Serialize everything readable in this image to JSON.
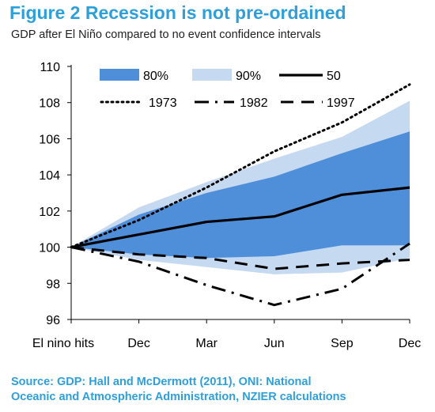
{
  "figure": {
    "title": "Figure 2 Recession is not pre-ordained",
    "subtitle": "GDP after El Niño compared to no event confidence intervals",
    "source_line1": "Source: GDP: Hall and McDermott (2011), ONI: National",
    "source_line2": "Oceanic and Atmospheric Administration, NZIER calculations"
  },
  "chart_data": {
    "type": "line",
    "title": "Figure 2 Recession is not pre-ordained",
    "subtitle": "GDP after El Niño compared to no event confidence intervals",
    "categories": [
      "El nino hits",
      "Dec",
      "Mar",
      "Jun",
      "Sep",
      "Dec"
    ],
    "ylim": [
      96,
      110
    ],
    "yticks": [
      96,
      98,
      100,
      102,
      104,
      106,
      108,
      110
    ],
    "legend_position": "top",
    "bands": [
      {
        "name": "90%",
        "color": "#c5d9f1",
        "lower": [
          100,
          99.3,
          98.9,
          98.5,
          98.6,
          99.4
        ],
        "upper": [
          100,
          102.2,
          103.6,
          104.9,
          106.1,
          108.1
        ]
      },
      {
        "name": "80%",
        "color": "#4f8fd9",
        "lower": [
          100,
          99.6,
          99.4,
          99.5,
          100.1,
          100.1
        ],
        "upper": [
          100,
          101.8,
          103.0,
          103.9,
          105.2,
          106.4
        ]
      }
    ],
    "series": [
      {
        "name": "50",
        "style": "solid",
        "color": "#000000",
        "values": [
          100,
          100.7,
          101.4,
          101.7,
          102.9,
          103.3
        ]
      },
      {
        "name": "1973",
        "style": "dotted",
        "color": "#000000",
        "values": [
          100,
          101.5,
          103.3,
          105.3,
          106.9,
          109.0
        ]
      },
      {
        "name": "1982",
        "style": "dashdot",
        "color": "#000000",
        "values": [
          100,
          99.2,
          97.9,
          96.8,
          97.7,
          100.2
        ]
      },
      {
        "name": "1997",
        "style": "dashed",
        "color": "#000000",
        "values": [
          100,
          99.6,
          99.4,
          98.8,
          99.1,
          99.3
        ]
      }
    ],
    "legend": {
      "row1": [
        "80%",
        "90%",
        "50"
      ],
      "row2": [
        "1973",
        "1982",
        "1997"
      ]
    }
  }
}
